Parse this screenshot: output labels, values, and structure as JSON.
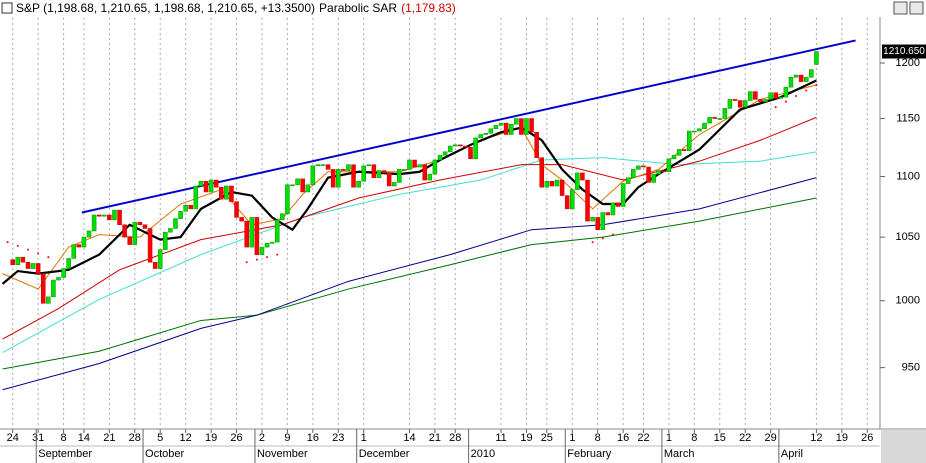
{
  "chart_data": {
    "type": "candlestick",
    "title": "S&P (1,198.68, 1,210.65, 1,198.68, 1,210.65, +13.3500)",
    "indicator_name": "Parabolic SAR",
    "indicator_value": "(1,179.83)",
    "last_price": {
      "value": 1210.65,
      "label": "1210.650"
    },
    "log_scale": true,
    "grid": true,
    "up_color": "#00e000",
    "down_color": "#ff0000",
    "xlim": [
      -2.5,
      170.5
    ],
    "ylim": [
      907,
      1246
    ],
    "yticks": [
      950,
      1000,
      1050,
      1100,
      1150,
      1200
    ],
    "xticks": [
      {
        "value": 0,
        "label": "24"
      },
      {
        "value": 5,
        "label": "31"
      },
      {
        "value": 10,
        "label": "8"
      },
      {
        "value": 14,
        "label": "14"
      },
      {
        "value": 19,
        "label": "21"
      },
      {
        "value": 24,
        "label": "28"
      },
      {
        "value": 29,
        "label": "5"
      },
      {
        "value": 34,
        "label": "12"
      },
      {
        "value": 39,
        "label": "19"
      },
      {
        "value": 44,
        "label": "26"
      },
      {
        "value": 49,
        "label": "2"
      },
      {
        "value": 54,
        "label": "9"
      },
      {
        "value": 59,
        "label": "16"
      },
      {
        "value": 64,
        "label": "23"
      },
      {
        "value": 69,
        "label": "1"
      },
      {
        "value": 78,
        "label": "14"
      },
      {
        "value": 83,
        "label": "21"
      },
      {
        "value": 87,
        "label": "28"
      },
      {
        "value": 96,
        "label": "11"
      },
      {
        "value": 101,
        "label": "19"
      },
      {
        "value": 105,
        "label": "25"
      },
      {
        "value": 110,
        "label": "1"
      },
      {
        "value": 115,
        "label": "8"
      },
      {
        "value": 120,
        "label": "16"
      },
      {
        "value": 124,
        "label": "22"
      },
      {
        "value": 129,
        "label": "1"
      },
      {
        "value": 134,
        "label": "8"
      },
      {
        "value": 139,
        "label": "15"
      },
      {
        "value": 144,
        "label": "22"
      },
      {
        "value": 149,
        "label": "29"
      },
      {
        "value": 158,
        "label": "12"
      },
      {
        "value": 163,
        "label": "19"
      },
      {
        "value": 168,
        "label": "26"
      }
    ],
    "months": [
      {
        "value": 6,
        "label": "September"
      },
      {
        "value": 27,
        "label": "October"
      },
      {
        "value": 49,
        "label": "November"
      },
      {
        "value": 69,
        "label": "December"
      },
      {
        "value": 91,
        "label": "2010"
      },
      {
        "value": 110,
        "label": "February"
      },
      {
        "value": 129,
        "label": "March"
      },
      {
        "value": 152,
        "label": "April"
      }
    ],
    "x": [
      0,
      1,
      2,
      3,
      4,
      5,
      6,
      7,
      8,
      9,
      10,
      11,
      12,
      13,
      14,
      15,
      16,
      17,
      18,
      19,
      20,
      21,
      22,
      23,
      24,
      25,
      26,
      27,
      28,
      29,
      30,
      31,
      32,
      33,
      34,
      35,
      36,
      37,
      38,
      39,
      40,
      41,
      42,
      43,
      44,
      45,
      46,
      47,
      48,
      49,
      50,
      51,
      52,
      53,
      54,
      55,
      56,
      57,
      58,
      59,
      60,
      61,
      62,
      63,
      64,
      65,
      66,
      67,
      68,
      69,
      70,
      71,
      72,
      73,
      74,
      75,
      76,
      77,
      78,
      79,
      80,
      81,
      82,
      83,
      84,
      85,
      86,
      87,
      88,
      89,
      90,
      91,
      92,
      93,
      94,
      95,
      96,
      97,
      98,
      99,
      100,
      101,
      102,
      103,
      104,
      105,
      106,
      107,
      108,
      109,
      110,
      111,
      112,
      113,
      114,
      115,
      116,
      117,
      118,
      119,
      120,
      121,
      122,
      123,
      124,
      125,
      126,
      127,
      128,
      129,
      130,
      131,
      132,
      133,
      134,
      135,
      136,
      137,
      138,
      139,
      140,
      141,
      142,
      143,
      144,
      145,
      146,
      147,
      148,
      149,
      150,
      151,
      152,
      153,
      154,
      155,
      156,
      157,
      158
    ],
    "open": [
      1032,
      1028,
      1034,
      1030,
      1025,
      1029,
      1021,
      998,
      1003,
      1016,
      1018,
      1025,
      1033,
      1044,
      1042,
      1050,
      1055,
      1068,
      1067,
      1068,
      1064,
      1072,
      1060,
      1050,
      1044,
      1062,
      1060,
      1057,
      1030,
      1025,
      1040,
      1054,
      1057,
      1065,
      1071,
      1076,
      1073,
      1092,
      1096,
      1087,
      1097,
      1091,
      1081,
      1092,
      1079,
      1066,
      1063,
      1042,
      1066,
      1036,
      1042,
      1045,
      1046,
      1064,
      1069,
      1093,
      1093,
      1098,
      1087,
      1093,
      1109,
      1110,
      1110,
      1106,
      1091,
      1106,
      1105,
      1110,
      1091,
      1096,
      1109,
      1110,
      1099,
      1105,
      1103,
      1092,
      1095,
      1106,
      1106,
      1114,
      1108,
      1110,
      1097,
      1102,
      1114,
      1118,
      1121,
      1126,
      1127,
      1126,
      1125,
      1115,
      1133,
      1136,
      1137,
      1141,
      1144,
      1146,
      1136,
      1145,
      1150,
      1136,
      1150,
      1138,
      1116,
      1091,
      1096,
      1092,
      1097,
      1084,
      1073,
      1089,
      1103,
      1097,
      1063,
      1066,
      1056,
      1070,
      1068,
      1078,
      1075,
      1094,
      1099,
      1106,
      1109,
      1108,
      1095,
      1102,
      1105,
      1104,
      1115,
      1118,
      1123,
      1122,
      1139,
      1139,
      1141,
      1146,
      1151,
      1150,
      1150,
      1159,
      1167,
      1166,
      1160,
      1166,
      1174,
      1167,
      1165,
      1167,
      1173,
      1168,
      1169,
      1178,
      1187,
      1189,
      1183,
      1187,
      1198.68
    ],
    "close": [
      1028,
      1034,
      1030,
      1025,
      1029,
      1021,
      998,
      1003,
      1016,
      1018,
      1025,
      1033,
      1044,
      1042,
      1050,
      1055,
      1068,
      1067,
      1068,
      1064,
      1072,
      1060,
      1050,
      1044,
      1062,
      1060,
      1057,
      1030,
      1025,
      1040,
      1054,
      1057,
      1065,
      1071,
      1076,
      1073,
      1092,
      1096,
      1087,
      1097,
      1091,
      1081,
      1092,
      1079,
      1066,
      1063,
      1042,
      1066,
      1036,
      1042,
      1045,
      1046,
      1064,
      1069,
      1093,
      1093,
      1098,
      1087,
      1093,
      1109,
      1110,
      1110,
      1106,
      1091,
      1106,
      1105,
      1110,
      1091,
      1096,
      1109,
      1110,
      1099,
      1105,
      1103,
      1092,
      1095,
      1106,
      1106,
      1114,
      1108,
      1110,
      1097,
      1102,
      1114,
      1118,
      1121,
      1126,
      1127,
      1126,
      1125,
      1115,
      1133,
      1136,
      1137,
      1141,
      1144,
      1146,
      1136,
      1145,
      1150,
      1136,
      1150,
      1138,
      1116,
      1091,
      1096,
      1092,
      1097,
      1084,
      1073,
      1089,
      1103,
      1097,
      1063,
      1066,
      1056,
      1070,
      1068,
      1078,
      1075,
      1094,
      1099,
      1106,
      1109,
      1108,
      1095,
      1102,
      1105,
      1104,
      1115,
      1118,
      1123,
      1122,
      1139,
      1139,
      1141,
      1146,
      1151,
      1150,
      1150,
      1159,
      1167,
      1166,
      1160,
      1166,
      1174,
      1167,
      1165,
      1167,
      1173,
      1168,
      1169,
      1178,
      1187,
      1189,
      1183,
      1187,
      1194,
      1210.65
    ],
    "lines": [
      {
        "color": "#007000",
        "width": 1,
        "x": [
          -2,
          17,
          37,
          48,
          66,
          86,
          102,
          116,
          135,
          158
        ],
        "values": [
          949,
          962,
          985,
          989,
          1009,
          1028,
          1044,
          1050,
          1063,
          1082
        ]
      },
      {
        "color": "#00008b",
        "width": 1,
        "x": [
          -2,
          17,
          37,
          48,
          66,
          86,
          102,
          116,
          135,
          158
        ],
        "values": [
          934,
          953,
          979,
          989,
          1015,
          1036,
          1056,
          1060,
          1073,
          1099
        ]
      },
      {
        "color": "#40e0d0",
        "width": 1,
        "x": [
          -2,
          17,
          37,
          57,
          76,
          92,
          104,
          116,
          131,
          147,
          158
        ],
        "values": [
          961,
          1001,
          1036,
          1066,
          1085,
          1097,
          1114,
          1116,
          1110,
          1113,
          1121
        ]
      },
      {
        "color": "#d00000",
        "width": 1,
        "x": [
          -2,
          9,
          21,
          37,
          53,
          68,
          84,
          100,
          108,
          120,
          135,
          147,
          158
        ],
        "values": [
          971,
          994,
          1024,
          1048,
          1060,
          1082,
          1097,
          1110,
          1110,
          1097,
          1113,
          1131,
          1151
        ]
      },
      {
        "color": "#e07000",
        "width": 1,
        "x": [
          -2,
          5,
          11,
          17,
          25,
          33,
          41,
          47,
          53,
          57,
          62,
          68,
          76,
          84,
          92,
          100,
          104,
          108,
          114,
          120,
          127,
          135,
          147,
          158
        ],
        "values": [
          1021,
          1009,
          1042,
          1052,
          1050,
          1077,
          1089,
          1060,
          1065,
          1085,
          1104,
          1104,
          1104,
          1114,
          1131,
          1142,
          1110,
          1097,
          1073,
          1096,
          1106,
          1136,
          1167,
          1180
        ]
      },
      {
        "color": "#000000",
        "width": 2.2,
        "x": [
          -2,
          1,
          5,
          11,
          17,
          23,
          29,
          33,
          37,
          43,
          47,
          51,
          55,
          58,
          62,
          68,
          76,
          80,
          84,
          90,
          96,
          100,
          104,
          108,
          112,
          116,
          120,
          123,
          127,
          135,
          143,
          151,
          158
        ],
        "values": [
          1013,
          1023,
          1021,
          1024,
          1036,
          1060,
          1048,
          1050,
          1073,
          1087,
          1084,
          1066,
          1056,
          1073,
          1099,
          1104,
          1102,
          1104,
          1114,
          1127,
          1138,
          1142,
          1131,
          1106,
          1089,
          1077,
          1077,
          1091,
          1102,
          1123,
          1158,
          1169,
          1184
        ]
      },
      {
        "color": "#0000cc",
        "width": 2,
        "x": [
          13.6,
          165.7
        ],
        "values": [
          1070,
          1221
        ]
      }
    ],
    "sar": {
      "color": "#ff0000",
      "x": [
        -1,
        1,
        3,
        5,
        7,
        46,
        48,
        50,
        52,
        114,
        116,
        118,
        150,
        152,
        154,
        156,
        158
      ],
      "values": [
        1046,
        1043,
        1040,
        1037,
        1034,
        1030,
        1032,
        1034,
        1036,
        1046,
        1049,
        1052,
        1160,
        1165,
        1170,
        1175,
        1179.83
      ]
    }
  }
}
